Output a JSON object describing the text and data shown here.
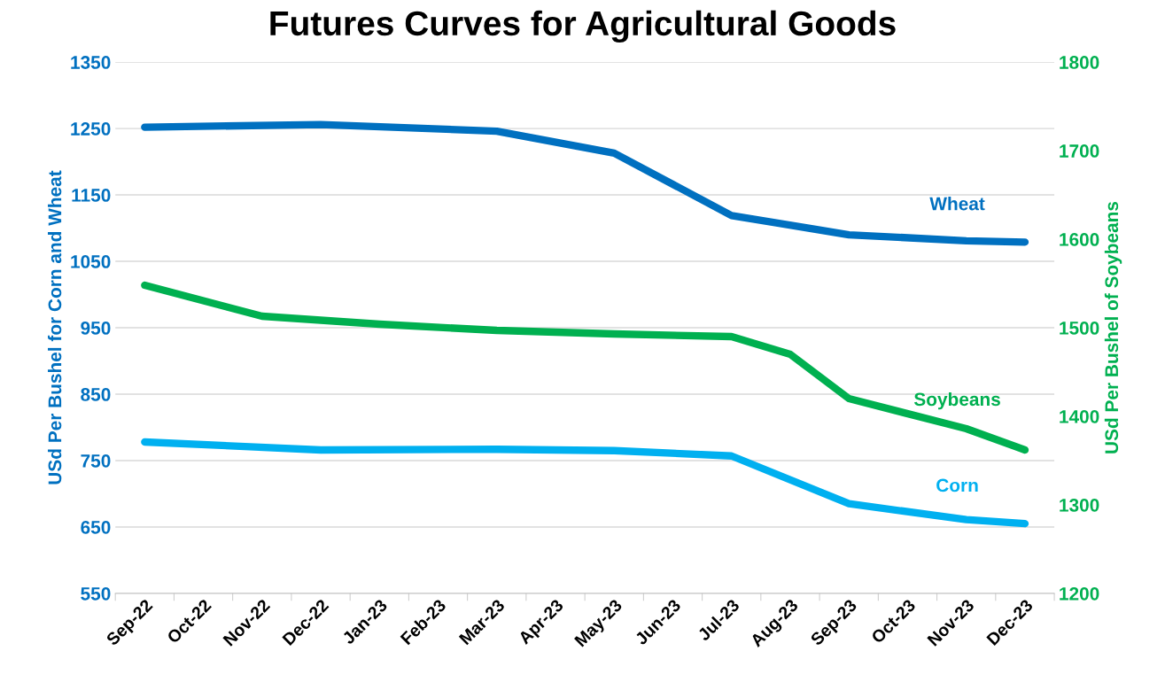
{
  "chart_data": {
    "type": "line",
    "title": "Futures Curves for Agricultural Goods",
    "categories": [
      "Sep-22",
      "Oct-22",
      "Nov-22",
      "Dec-22",
      "Jan-23",
      "Feb-23",
      "Mar-23",
      "Apr-23",
      "May-23",
      "Jun-23",
      "Jul-23",
      "Aug-23",
      "Sep-23",
      "Oct-23",
      "Nov-23",
      "Dec-23"
    ],
    "series": [
      {
        "name": "Wheat",
        "color": "#0070c0",
        "values": [
          1252,
          null,
          null,
          1256,
          null,
          null,
          1246,
          null,
          1213,
          null,
          1119,
          null,
          1090,
          null,
          1081,
          1079
        ]
      },
      {
        "name": "Corn",
        "color": "#00b0f0",
        "values": [
          778,
          null,
          null,
          766,
          null,
          null,
          767,
          null,
          765,
          null,
          757,
          null,
          685,
          null,
          661,
          655
        ]
      },
      {
        "name": "Soybeans",
        "color": "#00b050",
        "axis": "y2",
        "values": [
          1548,
          null,
          1513,
          null,
          1504,
          null,
          1497,
          null,
          1493,
          null,
          1490,
          1470,
          1420,
          null,
          1386,
          1362
        ]
      }
    ],
    "ylabel": "USd Per Bushel for Corn and Wheat",
    "y2label": "USd Per Bushel of Soybeans",
    "ylim": [
      550,
      1350
    ],
    "yticks": [
      550,
      650,
      750,
      850,
      950,
      1050,
      1150,
      1250,
      1350
    ],
    "y2lim": [
      1200,
      1800
    ],
    "y2ticks": [
      1200,
      1300,
      1400,
      1500,
      1600,
      1700,
      1800
    ],
    "grid": "y",
    "legend": false,
    "marker": "none",
    "line_style": "solid"
  }
}
